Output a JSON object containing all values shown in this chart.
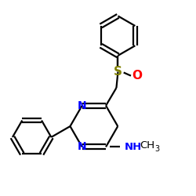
{
  "bg_color": "#ffffff",
  "atom_colors": {
    "N": "#0000ff",
    "O": "#ff0000",
    "S": "#808000",
    "C": "#000000"
  },
  "bond_color": "#000000",
  "bond_width": 1.6,
  "figsize": [
    2.5,
    2.5
  ],
  "dpi": 100,
  "xlim": [
    -1.1,
    1.2
  ],
  "ylim": [
    -1.2,
    1.2
  ]
}
